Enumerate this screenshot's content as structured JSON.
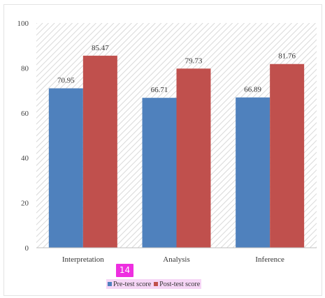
{
  "chart_data": {
    "type": "bar",
    "categories": [
      "Interpretation",
      "Analysis",
      "Inference"
    ],
    "series": [
      {
        "name": "Pre-test score",
        "values": [
          70.95,
          66.71,
          66.89
        ],
        "color": "#4f81bd"
      },
      {
        "name": "Post-test score",
        "values": [
          85.47,
          79.73,
          81.76
        ],
        "color": "#c0504d"
      }
    ],
    "ylim": [
      0,
      100
    ],
    "yticks": [
      0,
      20,
      40,
      60,
      80,
      100
    ],
    "data_labels": true,
    "grid": false,
    "plot_background": "diagonal-hatch",
    "legend_position": "bottom"
  },
  "badge": {
    "text": "14",
    "color": "#ee2fe0"
  }
}
